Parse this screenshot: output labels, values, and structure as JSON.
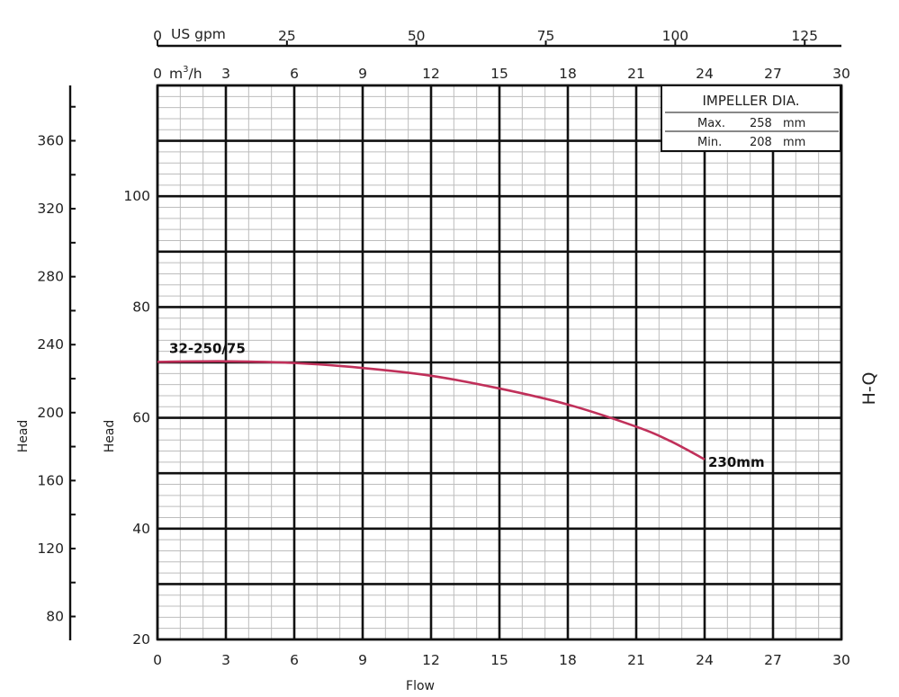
{
  "chart_data": {
    "type": "line",
    "x_axis": {
      "label": "Flow",
      "unit": "m³/h",
      "range": [
        0,
        30
      ],
      "ticks": [
        "0",
        "3",
        "6",
        "9",
        "12",
        "15",
        "18",
        "21",
        "24",
        "27",
        "30"
      ]
    },
    "top_axes": {
      "usgpm": {
        "unit": "US gpm",
        "ticks": [
          {
            "label": "0",
            "value": 0
          },
          {
            "label": "25",
            "value": 25
          },
          {
            "label": "50",
            "value": 50
          },
          {
            "label": "75",
            "value": 75
          },
          {
            "label": "100",
            "value": 100
          },
          {
            "label": "125",
            "value": 125
          }
        ]
      },
      "m3h": {
        "unit_base": "m",
        "unit_exp": "3",
        "unit_tail": "/h",
        "ticks": [
          "0",
          "3",
          "6",
          "9",
          "12",
          "15",
          "18",
          "21",
          "24",
          "27",
          "30"
        ]
      }
    },
    "y_axis": {
      "label": "Head",
      "range": [
        20,
        120
      ],
      "ticks": [
        "20",
        "40",
        "60",
        "80",
        "100"
      ]
    },
    "y_axis_secondary": {
      "label": "Head",
      "ticks": [
        "80",
        "120",
        "160",
        "200",
        "240",
        "280",
        "320",
        "360"
      ]
    },
    "side_label": "H-Q",
    "legend_box": {
      "title": "IMPELLER DIA.",
      "rows": [
        {
          "name": "Max.",
          "value": "258",
          "unit": "mm"
        },
        {
          "name": "Min.",
          "value": "208",
          "unit": "mm"
        }
      ]
    },
    "series": [
      {
        "model_label": "32-250/75",
        "end_label": "230mm",
        "color": "#c0305a",
        "points": [
          {
            "x": 0,
            "y": 70.1
          },
          {
            "x": 3,
            "y": 70.2
          },
          {
            "x": 6,
            "y": 69.9
          },
          {
            "x": 9,
            "y": 69.0
          },
          {
            "x": 12,
            "y": 67.6
          },
          {
            "x": 15,
            "y": 65.3
          },
          {
            "x": 18,
            "y": 62.4
          },
          {
            "x": 21,
            "y": 58.4
          },
          {
            "x": 22.5,
            "y": 55.8
          },
          {
            "x": 24,
            "y": 52.5
          }
        ]
      }
    ]
  }
}
